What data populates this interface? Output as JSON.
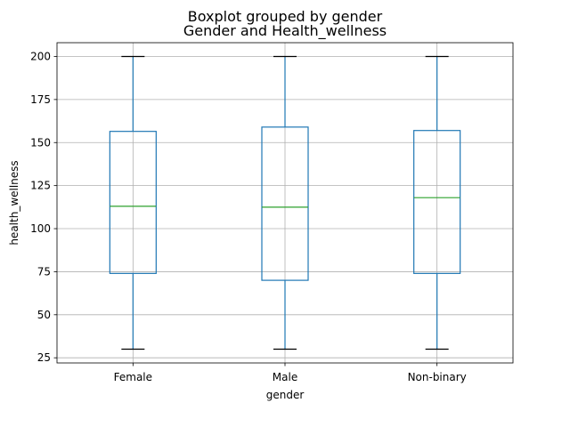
{
  "chart_data": {
    "type": "boxplot",
    "suptitle": "Boxplot grouped by gender",
    "title": "Gender and Health_wellness",
    "xlabel": "gender",
    "ylabel": "health_wellness",
    "ylim": [
      22,
      208
    ],
    "yticks": [
      25,
      50,
      75,
      100,
      125,
      150,
      175,
      200
    ],
    "grid": true,
    "categories": [
      "Female",
      "Male",
      "Non-binary"
    ],
    "boxes": [
      {
        "category": "Female",
        "whisker_low": 30,
        "q1": 74,
        "median": 113,
        "q3": 156.5,
        "whisker_high": 200
      },
      {
        "category": "Male",
        "whisker_low": 30,
        "q1": 70,
        "median": 112.5,
        "q3": 159,
        "whisker_high": 200
      },
      {
        "category": "Non-binary",
        "whisker_low": 30,
        "q1": 74,
        "median": 118,
        "q3": 157,
        "whisker_high": 200
      }
    ],
    "colors": {
      "box": "#1f77b4",
      "median": "#2ca02c",
      "cap": "#000000"
    }
  }
}
